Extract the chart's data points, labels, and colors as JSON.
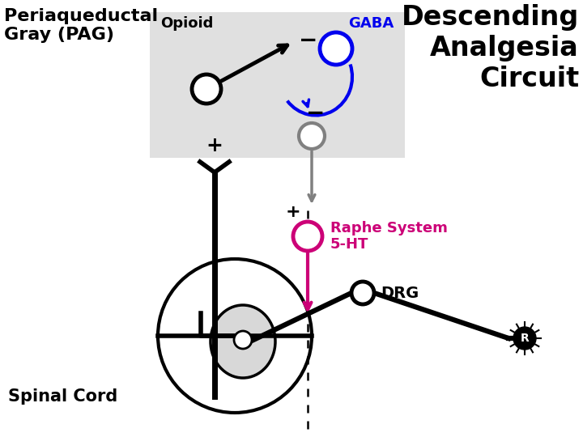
{
  "bg_color": "#ffffff",
  "pag_box_color": "#e0e0e0",
  "title": "Descending\nAnalgesia\nCircuit",
  "title_color": "#000000",
  "pag_label": "Periaqueductal\nGray (PAG)",
  "opioid_label": "Opioid",
  "gaba_label": "GABA",
  "gaba_color": "#0000ee",
  "raphe_label": "Raphe System\n5-HT",
  "raphe_color": "#cc0077",
  "drg_label": "DRG",
  "spinal_label": "Spinal Cord",
  "r_label": "R",
  "plus_label": "+",
  "minus_label": "−"
}
